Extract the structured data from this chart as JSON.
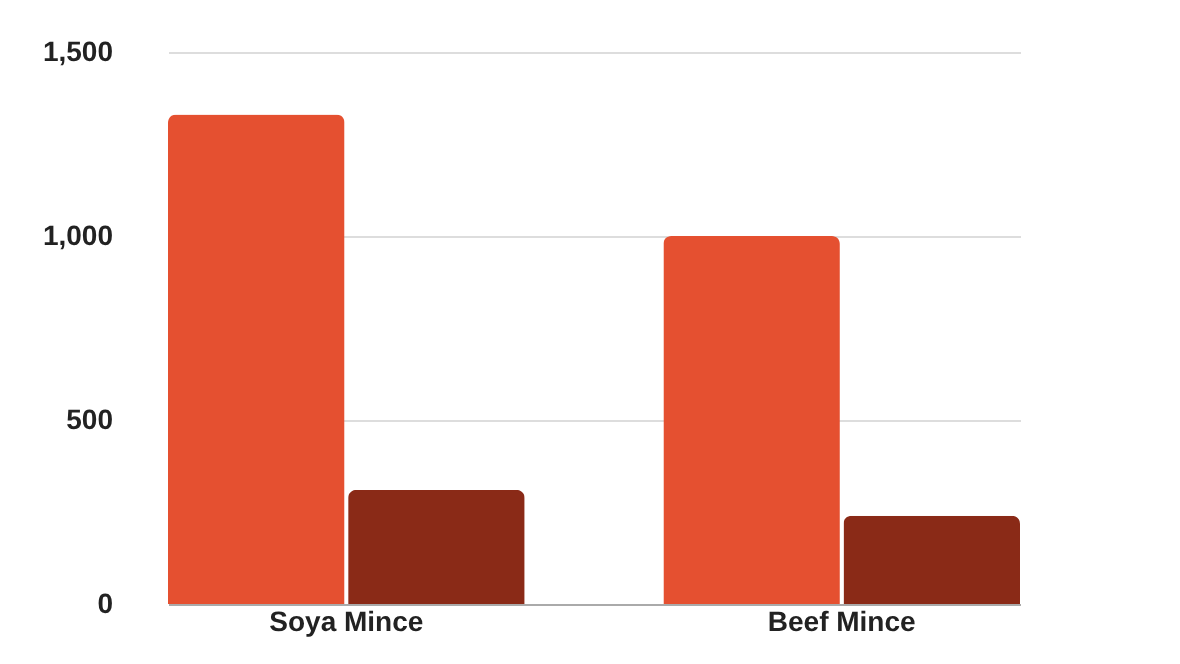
{
  "chart_data": {
    "type": "bar",
    "categories": [
      "Soya Mince",
      "Beef Mince"
    ],
    "series": [
      {
        "color": "#e55030",
        "values": [
          1330,
          1000
        ]
      },
      {
        "color": "#8a2a17",
        "values": [
          310,
          240
        ]
      }
    ],
    "ylim": [
      0,
      1500
    ],
    "yticks": [
      0,
      {
        "value": 500,
        "label": "500"
      },
      {
        "value": 1000,
        "label": "1,000"
      },
      {
        "value": 1500,
        "label": "1,500"
      }
    ],
    "grid": "y"
  }
}
